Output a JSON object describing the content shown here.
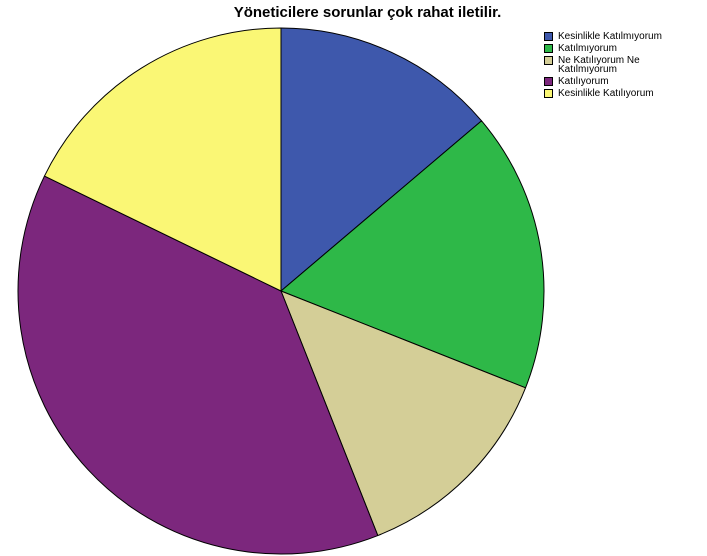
{
  "chart_data": {
    "type": "pie",
    "title": "Yöneticilere sorunlar çok rahat iletilir.",
    "legend_position": "top-right",
    "slices": [
      {
        "label": "Kesinlikle Katılmıyorum",
        "value": 13.8,
        "color": "#3E58AC"
      },
      {
        "label": "Katılmıyorum",
        "value": 17.2,
        "color": "#2EB848"
      },
      {
        "label": "Ne Katılıyorum Ne Katılmıyorum",
        "value": 13.0,
        "color": "#D4CE97"
      },
      {
        "label": "Katılıyorum",
        "value": 38.2,
        "color": "#7C277D"
      },
      {
        "label": "Kesinlikle Katılıyorum",
        "value": 17.8,
        "color": "#FAF775"
      }
    ]
  }
}
